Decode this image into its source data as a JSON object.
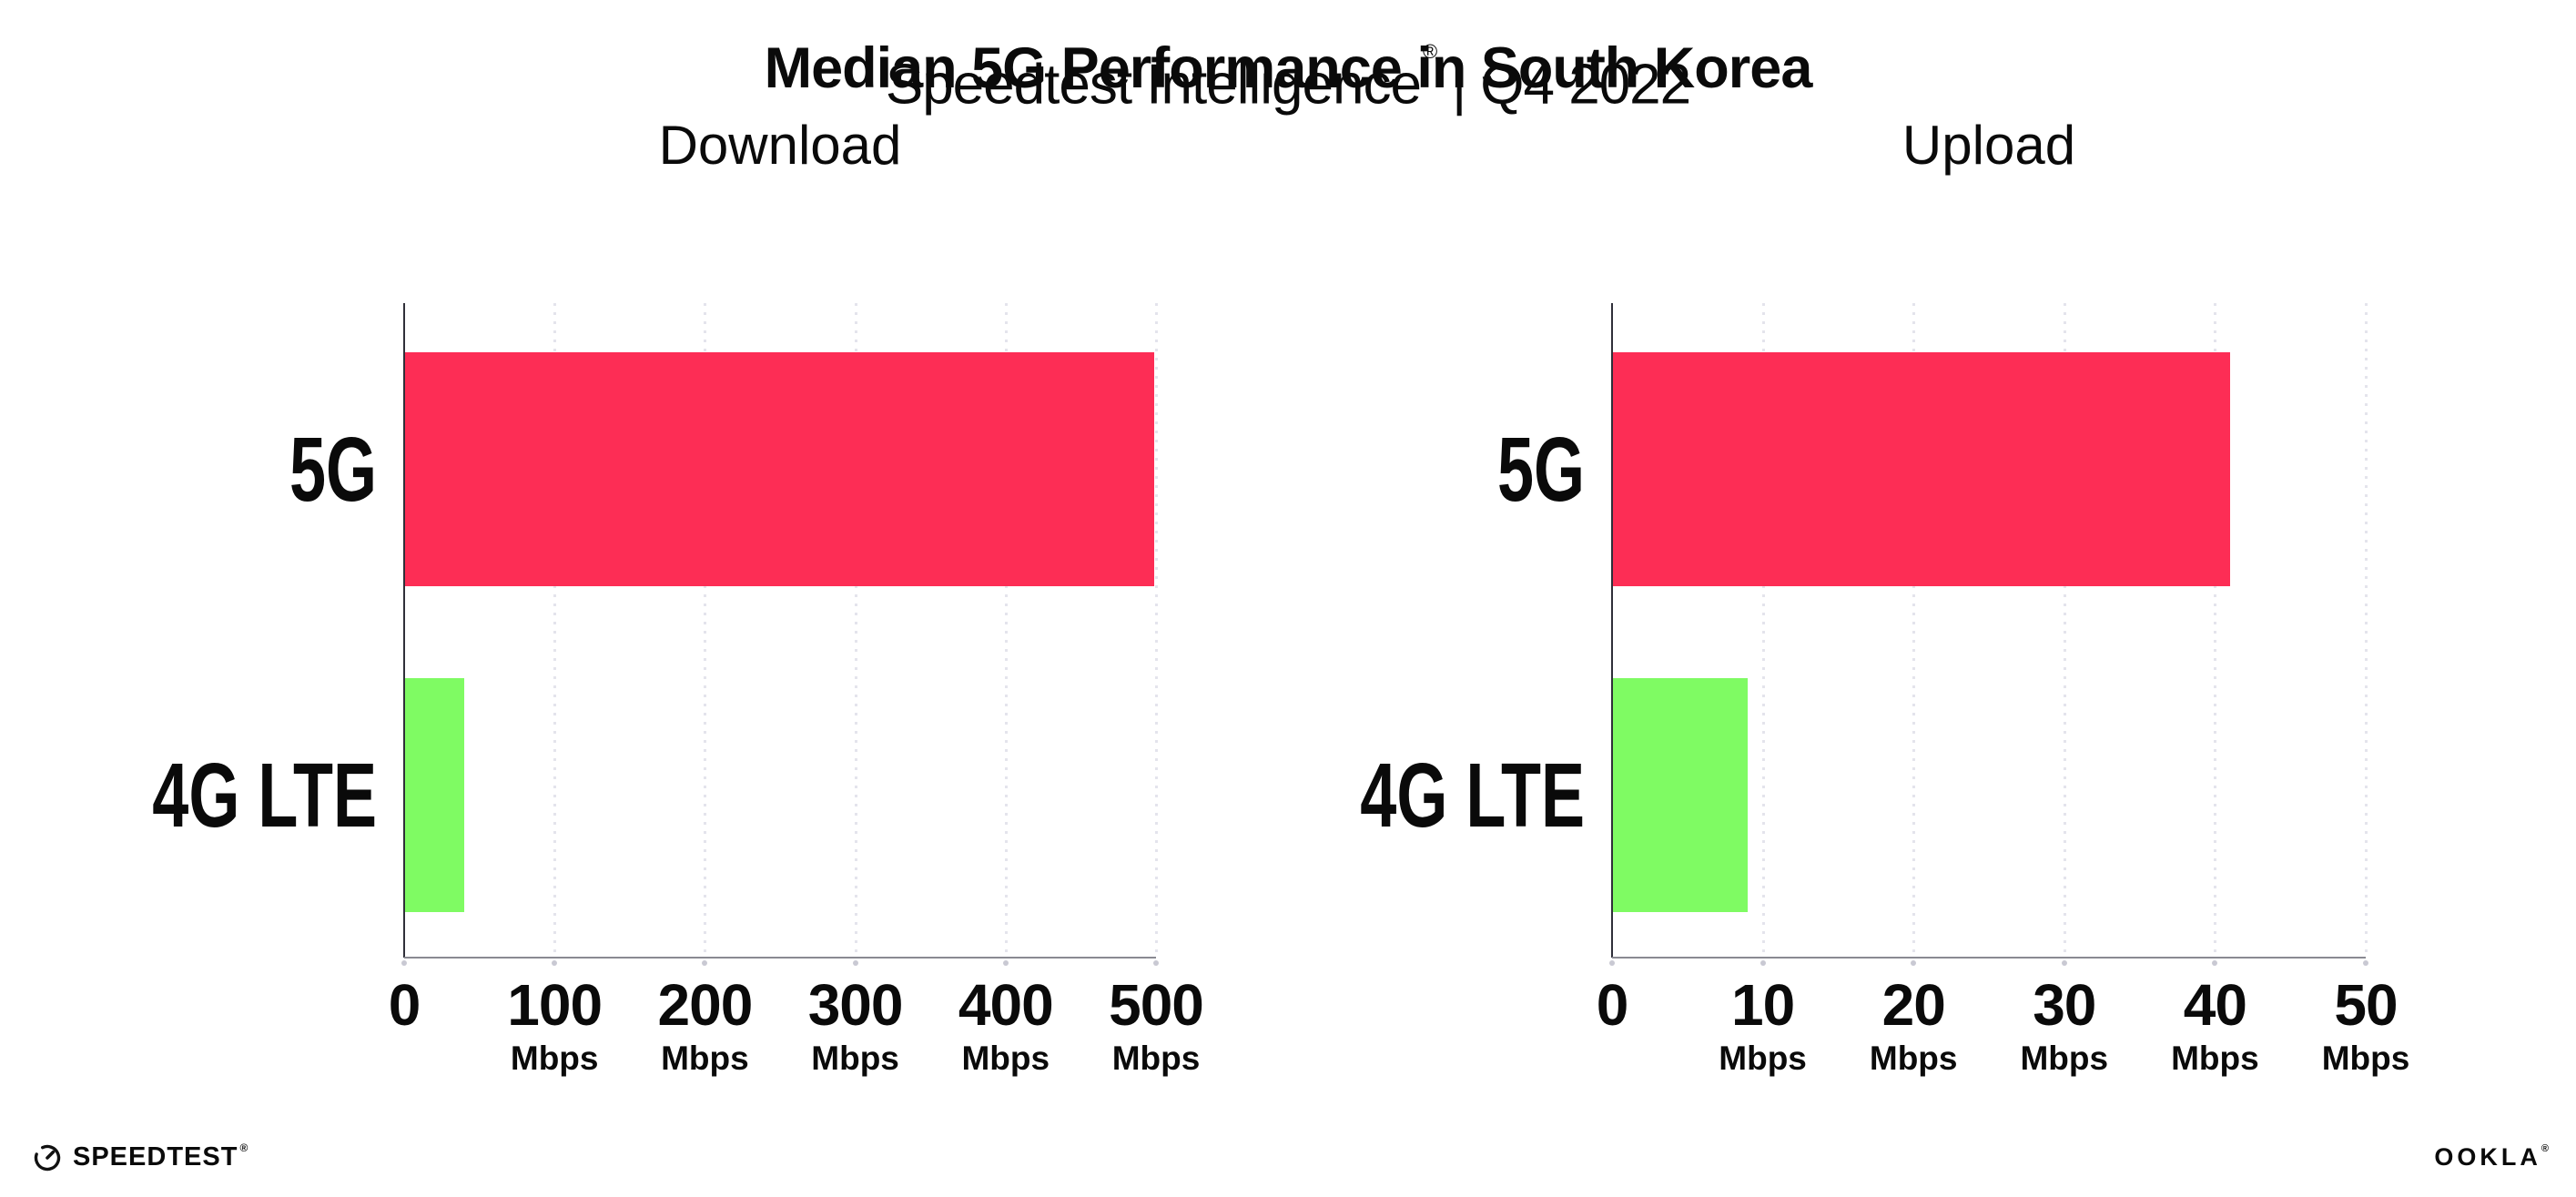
{
  "header": {
    "title": "Median 5G Performance in South Korea",
    "brand": "Speedtest Intelligence",
    "registered_mark": "®",
    "divider": "|",
    "period": "Q4 2022"
  },
  "footer": {
    "speedtest_wordmark": "SPEEDTEST",
    "speedtest_mark": "®",
    "ookla_wordmark": "OOKLA",
    "ookla_mark": "®"
  },
  "colors": {
    "bar_5g": "#FD2D55",
    "bar_4g_lte": "#7FFB63",
    "axis_line": "#2F2F39",
    "baseline": "#8A8A92",
    "gridline": "#E4E4EC",
    "text": "#0A0A0A"
  },
  "chart_data": [
    {
      "type": "bar",
      "orientation": "horizontal",
      "title": "Download",
      "categories": [
        "5G",
        "4G LTE"
      ],
      "values": [
        499,
        40
      ],
      "unit": "Mbps",
      "xlabel": "",
      "ylabel": "",
      "xlim": [
        0,
        500
      ],
      "xticks": [
        0,
        100,
        200,
        300,
        400,
        500
      ],
      "bar_colors": [
        "#FD2D55",
        "#7FFB63"
      ],
      "grid": "vertical-dotted",
      "legend": "none"
    },
    {
      "type": "bar",
      "orientation": "horizontal",
      "title": "Upload",
      "categories": [
        "5G",
        "4G LTE"
      ],
      "values": [
        41,
        9
      ],
      "unit": "Mbps",
      "xlabel": "",
      "ylabel": "",
      "xlim": [
        0,
        50
      ],
      "xticks": [
        0,
        10,
        20,
        30,
        40,
        50
      ],
      "bar_colors": [
        "#FD2D55",
        "#7FFB63"
      ],
      "grid": "vertical-dotted",
      "legend": "none"
    }
  ]
}
